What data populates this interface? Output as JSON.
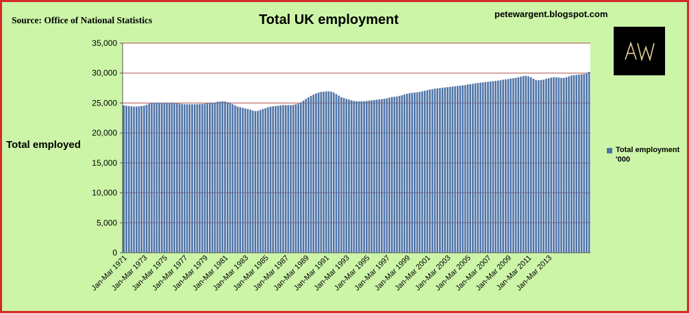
{
  "header": {
    "source": "Source: Office of National Statistics",
    "title": "Total UK employment",
    "blog": "petewargent.blogspot.com",
    "logo_text": "AW"
  },
  "colors": {
    "background": "#ccf5a8",
    "plot_background": "#ffffff",
    "bar": "#4f74a6",
    "grid": "#b05050",
    "border": "#d62a2a"
  },
  "chart_data": {
    "type": "bar",
    "title": "Total UK employment",
    "ylabel": "Total employed",
    "xlabel": "",
    "ylim": [
      0,
      35000
    ],
    "yticks": [
      "0",
      "5,000",
      "10,000",
      "15,000",
      "20,000",
      "25,000",
      "30,000",
      "35,000"
    ],
    "grid": "horizontal",
    "legend_position": "right",
    "series": [
      {
        "name": "Total employment '000",
        "quarterly_from": "Jan-Mar 1971",
        "values": [
          24600,
          24550,
          24500,
          24450,
          24400,
          24420,
          24450,
          24500,
          24550,
          24700,
          24900,
          25050,
          25050,
          25050,
          25050,
          25050,
          25050,
          25050,
          25050,
          25050,
          25000,
          24950,
          24900,
          24850,
          24800,
          24800,
          24800,
          24800,
          24800,
          24800,
          24850,
          24850,
          24900,
          24950,
          25000,
          25050,
          25100,
          25200,
          25250,
          25300,
          25250,
          25150,
          25000,
          24800,
          24600,
          24400,
          24300,
          24200,
          24100,
          24000,
          23900,
          23750,
          23650,
          23700,
          23850,
          24000,
          24150,
          24300,
          24400,
          24450,
          24500,
          24550,
          24600,
          24650,
          24650,
          24650,
          24650,
          24700,
          24800,
          24900,
          25100,
          25400,
          25700,
          25950,
          26200,
          26400,
          26600,
          26750,
          26850,
          26900,
          26950,
          26950,
          26900,
          26750,
          26500,
          26250,
          26000,
          25850,
          25700,
          25600,
          25450,
          25350,
          25300,
          25300,
          25300,
          25300,
          25350,
          25400,
          25450,
          25500,
          25550,
          25600,
          25650,
          25700,
          25800,
          25900,
          26000,
          26050,
          26100,
          26200,
          26300,
          26450,
          26550,
          26650,
          26700,
          26750,
          26800,
          26850,
          26950,
          27050,
          27150,
          27250,
          27300,
          27400,
          27450,
          27500,
          27550,
          27600,
          27650,
          27700,
          27750,
          27800,
          27850,
          27900,
          27950,
          28000,
          28100,
          28150,
          28200,
          28300,
          28350,
          28400,
          28450,
          28500,
          28550,
          28600,
          28650,
          28700,
          28750,
          28800,
          28900,
          28950,
          29000,
          29100,
          29150,
          29200,
          29300,
          29400,
          29500,
          29550,
          29450,
          29300,
          29050,
          28850,
          28800,
          28850,
          28900,
          29050,
          29150,
          29250,
          29300,
          29300,
          29250,
          29200,
          29200,
          29300,
          29450,
          29600,
          29650,
          29700,
          29750,
          29800,
          29850,
          29950,
          30200
        ]
      }
    ],
    "x_tick_labels": [
      "Jan-Mar 1971",
      "Jan-Mar 1973",
      "Jan-Mar 1975",
      "Jan-Mar 1977",
      "Jan-Mar 1979",
      "Jan-Mar 1981",
      "Jan-Mar 1983",
      "Jan-Mar 1985",
      "Jan-Mar 1987",
      "Jan-Mar 1989",
      "Jan-Mar 1991",
      "Jan-Mar 1993",
      "Jan-Mar 1995",
      "Jan-Mar 1997",
      "Jan-Mar 1999",
      "Jan-Mar 2001",
      "Jan-Mar 2003",
      "Jan-Mar 2005",
      "Jan-Mar 2007",
      "Jan-Mar 2009",
      "Jan-Mar 2011",
      "Jan-Mar 2013"
    ],
    "legend": [
      "Total employment '000"
    ]
  }
}
